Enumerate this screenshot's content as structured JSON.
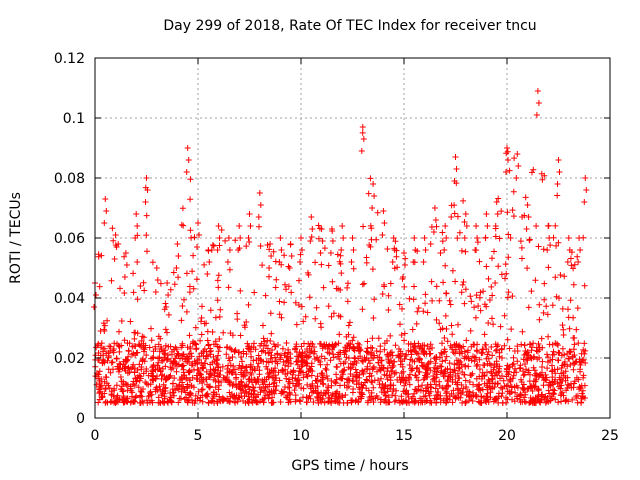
{
  "chart_data": {
    "type": "scatter",
    "title": "Day 299 of 2018, Rate Of TEC Index for receiver tncu",
    "xlabel": "GPS time / hours",
    "ylabel": "ROTI / TECUs",
    "xlim": [
      0,
      25
    ],
    "ylim": [
      0,
      0.12
    ],
    "xticks": [
      "0",
      "5",
      "10",
      "15",
      "20",
      "25"
    ],
    "yticks": [
      "0",
      "0.02",
      "0.04",
      "0.06",
      "0.08",
      "0.1",
      "0.12"
    ],
    "grid": true,
    "marker": "+",
    "series": [
      {
        "name": "ROTI",
        "color": "#ff0000",
        "envelope_x": [
          0,
          0.5,
          1.0,
          1.5,
          2.0,
          2.5,
          3.0,
          3.5,
          4.0,
          4.5,
          5.0,
          5.5,
          6.0,
          6.5,
          7.0,
          7.5,
          8.0,
          8.5,
          9.0,
          9.5,
          10.0,
          10.5,
          11.0,
          11.5,
          12.0,
          12.5,
          13.0,
          13.5,
          14.0,
          14.5,
          15.0,
          15.5,
          16.0,
          16.5,
          17.0,
          17.5,
          18.0,
          18.5,
          19.0,
          19.5,
          20.0,
          20.5,
          21.0,
          21.5,
          22.0,
          22.5,
          23.0,
          23.5,
          23.8
        ],
        "envelope_max": [
          0.045,
          0.073,
          0.061,
          0.055,
          0.068,
          0.08,
          0.05,
          0.045,
          0.058,
          0.09,
          0.065,
          0.056,
          0.064,
          0.06,
          0.064,
          0.068,
          0.075,
          0.058,
          0.06,
          0.058,
          0.06,
          0.067,
          0.063,
          0.063,
          0.064,
          0.06,
          0.097,
          0.078,
          0.069,
          0.06,
          0.055,
          0.06,
          0.06,
          0.07,
          0.064,
          0.087,
          0.068,
          0.064,
          0.068,
          0.072,
          0.09,
          0.088,
          0.071,
          0.109,
          0.064,
          0.086,
          0.06,
          0.06,
          0.08
        ],
        "baseline_low": 0.005,
        "baseline_high": 0.025
      }
    ]
  }
}
